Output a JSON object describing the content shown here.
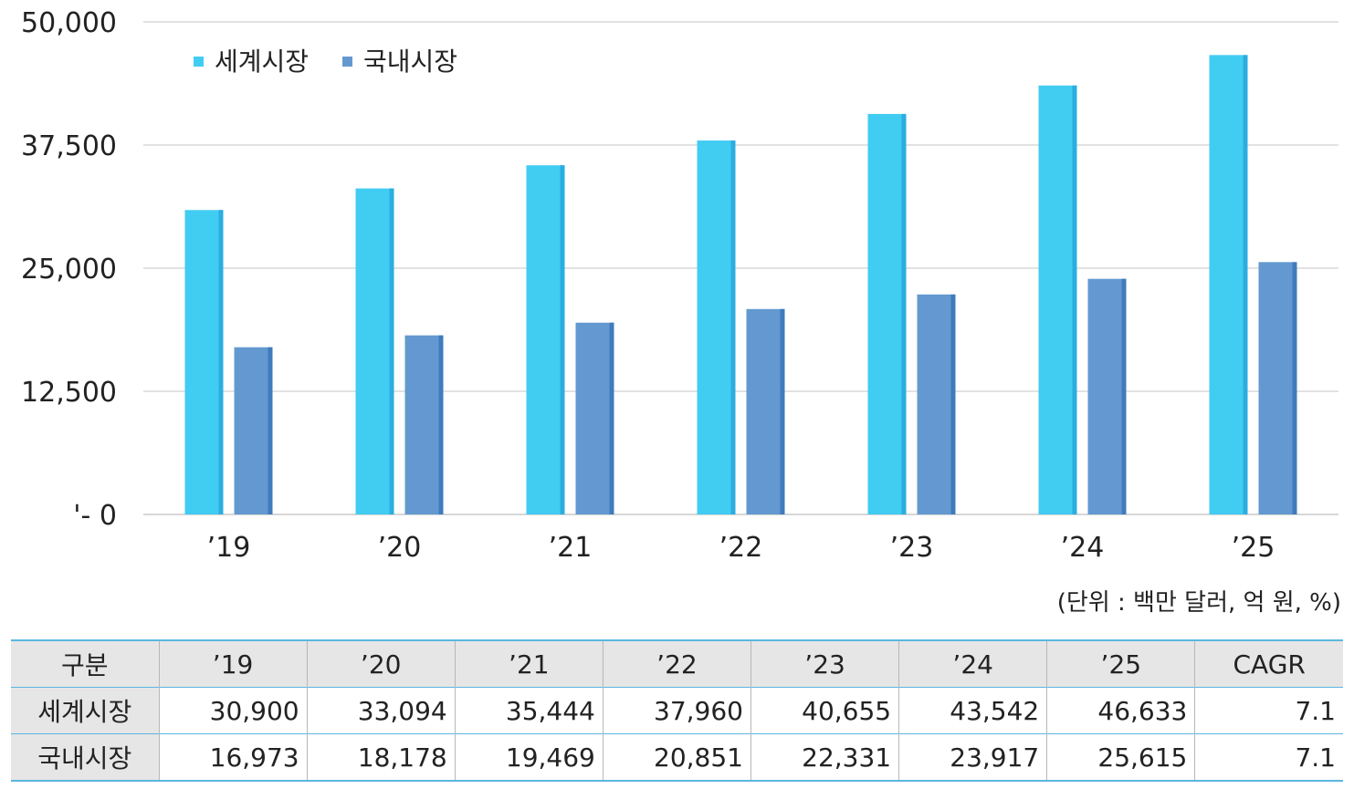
{
  "chart_data": {
    "type": "bar",
    "categories": [
      "’19",
      "’20",
      "’21",
      "’22",
      "’23",
      "’24",
      "’25"
    ],
    "series": [
      {
        "name": "세계시장",
        "color": "#41ccf2",
        "values": [
          30900,
          33094,
          35444,
          37960,
          40655,
          43542,
          46633
        ]
      },
      {
        "name": "국내시장",
        "color": "#6399d0",
        "values": [
          16973,
          18178,
          19469,
          20851,
          22331,
          23917,
          25615
        ]
      }
    ],
    "yticks": [
      "'- 0",
      "12,500",
      "25,000",
      "37,500",
      "50,000"
    ],
    "ylim": [
      0,
      50000
    ],
    "grid": true,
    "legend": "top-left"
  },
  "unit_note": "(단위 : 백만 달러, 억 원, %)",
  "table": {
    "headers": [
      "구분",
      "’19",
      "’20",
      "’21",
      "’22",
      "’23",
      "’24",
      "’25",
      "CAGR"
    ],
    "rows": [
      [
        "세계시장",
        "30,900",
        "33,094",
        "35,444",
        "37,960",
        "40,655",
        "43,542",
        "46,633",
        "7.1"
      ],
      [
        "국내시장",
        "16,973",
        "18,178",
        "19,469",
        "20,851",
        "22,331",
        "23,917",
        "25,615",
        "7.1"
      ]
    ]
  }
}
